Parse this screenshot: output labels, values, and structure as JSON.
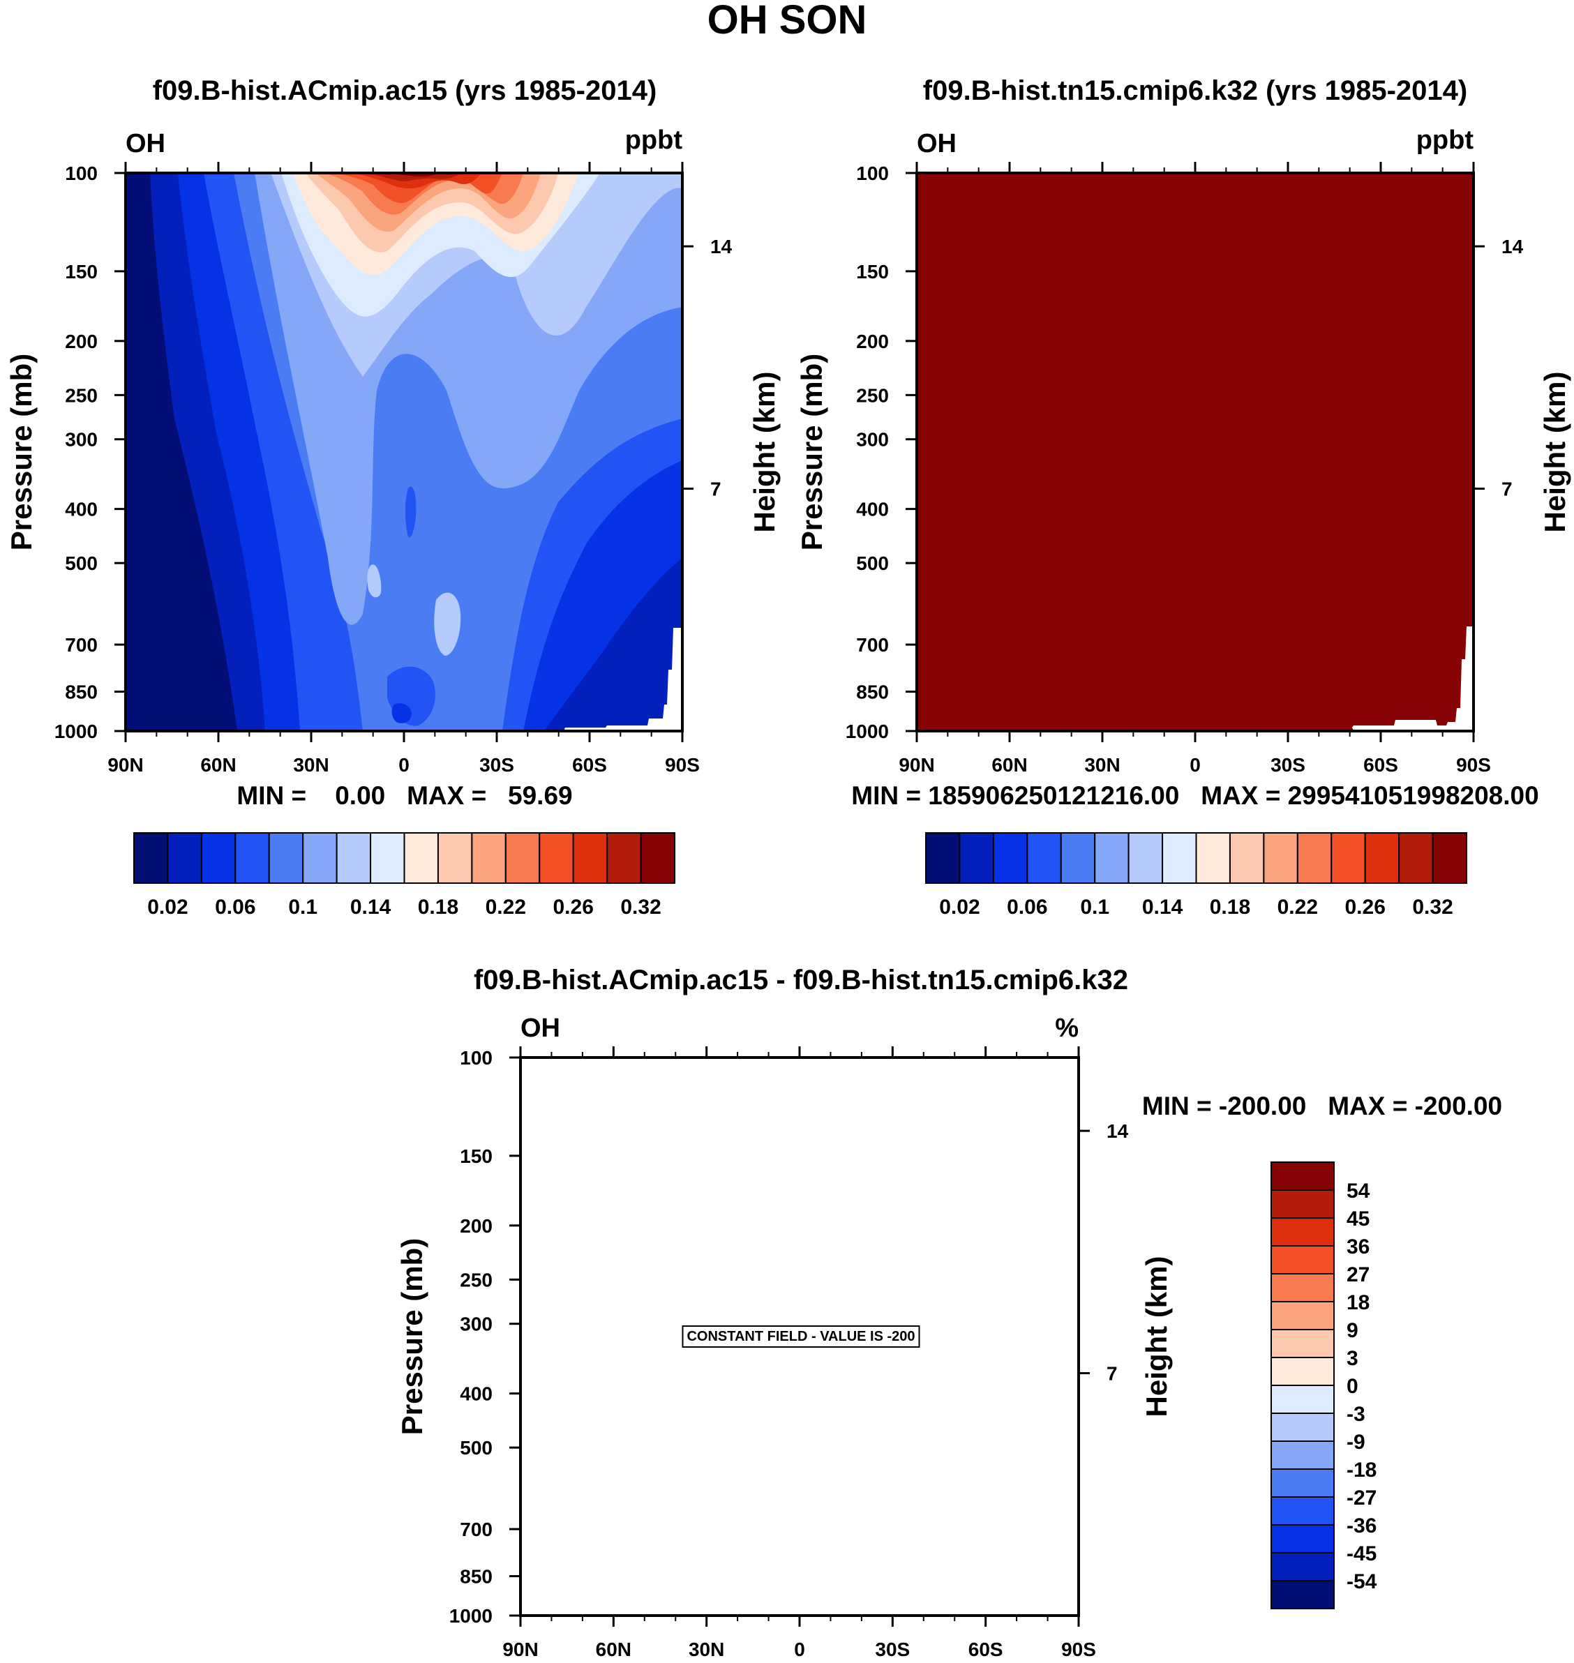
{
  "figure_title": "OH SON",
  "colors": {
    "bar_colors": [
      "#020D76",
      "#0420BC",
      "#0632E6",
      "#2253F5",
      "#4C7CF4",
      "#85A7F7",
      "#B4CBFB",
      "#DCEBFD",
      "#FEE9DA",
      "#FCC9AF",
      "#FBA57F",
      "#F87A4F",
      "#F25026",
      "#DE300E",
      "#B11D08",
      "#870203"
    ]
  },
  "panels": [
    {
      "title": "f09.B-hist.ACmip.ac15 (yrs 1985-2014)",
      "left_label": "OH",
      "right_label": "ppbt",
      "stats": "MIN =    0.00   MAX =   59.69",
      "fill": "contours",
      "colorbar_labels": [
        "0.02",
        "0.06",
        "0.1",
        "0.14",
        "0.18",
        "0.22",
        "0.26",
        "0.32"
      ]
    },
    {
      "title": "f09.B-hist.tn15.cmip6.k32 (yrs 1985-2014)",
      "left_label": "OH",
      "right_label": "ppbt",
      "stats": "MIN = 18590625012121​6.00   MAX = 29954105199820​8.00",
      "fill": "solid",
      "colorbar_labels": [
        "0.02",
        "0.06",
        "0.1",
        "0.14",
        "0.18",
        "0.22",
        "0.26",
        "0.32"
      ]
    },
    {
      "title": "f09.B-hist.ACmip.ac15 - f09.B-hist.tn15.cmip6.k32",
      "left_label": "OH",
      "right_label": "%",
      "stats": "MIN = -200.00   MAX = -200.00",
      "fill": "none",
      "message": "CONSTANT FIELD - VALUE IS -200",
      "colorbar_labels": [
        "54",
        "45",
        "36",
        "27",
        "18",
        "9",
        "3",
        "0",
        "-3",
        "-9",
        "-18",
        "-27",
        "-36",
        "-45",
        "-54"
      ]
    }
  ],
  "chart_data": [
    {
      "type": "heatmap",
      "title": "f09.B-hist.ACmip.ac15 (yrs 1985-2014)",
      "variable": "OH",
      "units": "ppbt",
      "xlabel": "",
      "ylabel": "Pressure (mb)",
      "y2label": "Height (km)",
      "x_ticks": [
        "90N",
        "60N",
        "30N",
        "0",
        "30S",
        "60S",
        "90S"
      ],
      "y_ticks": [
        100,
        150,
        200,
        250,
        300,
        400,
        500,
        700,
        850,
        1000
      ],
      "y2_ticks": [
        14,
        7
      ],
      "ylim": [
        1000,
        100
      ],
      "contour_levels": [
        0.02,
        0.04,
        0.06,
        0.08,
        0.1,
        0.12,
        0.14,
        0.16,
        0.18,
        0.2,
        0.22,
        0.24,
        0.26,
        0.28,
        0.32
      ],
      "min": 0.0,
      "max": 59.69
    },
    {
      "type": "heatmap",
      "title": "f09.B-hist.tn15.cmip6.k32 (yrs 1985-2014)",
      "variable": "OH",
      "units": "ppbt",
      "xlabel": "",
      "ylabel": "Pressure (mb)",
      "y2label": "Height (km)",
      "x_ticks": [
        "90N",
        "60N",
        "30N",
        "0",
        "30S",
        "60S",
        "90S"
      ],
      "y_ticks": [
        100,
        150,
        200,
        250,
        300,
        400,
        500,
        700,
        850,
        1000
      ],
      "y2_ticks": [
        14,
        7
      ],
      "ylim": [
        1000,
        100
      ],
      "contour_levels": [
        0.02,
        0.04,
        0.06,
        0.08,
        0.1,
        0.12,
        0.14,
        0.16,
        0.18,
        0.2,
        0.22,
        0.24,
        0.26,
        0.28,
        0.32
      ],
      "min": 185906250121216.0,
      "max": 299541051998208.0
    },
    {
      "type": "heatmap",
      "title": "f09.B-hist.ACmip.ac15 - f09.B-hist.tn15.cmip6.k32",
      "variable": "OH",
      "units": "%",
      "xlabel": "",
      "ylabel": "Pressure (mb)",
      "y2label": "Height (km)",
      "x_ticks": [
        "90N",
        "60N",
        "30N",
        "0",
        "30S",
        "60S",
        "90S"
      ],
      "y_ticks": [
        100,
        150,
        200,
        250,
        300,
        400,
        500,
        700,
        850,
        1000
      ],
      "y2_ticks": [
        14,
        7
      ],
      "ylim": [
        1000,
        100
      ],
      "contour_levels": [
        -54,
        -45,
        -36,
        -27,
        -18,
        -9,
        -3,
        0,
        3,
        9,
        18,
        27,
        36,
        45,
        54
      ],
      "min": -200.0,
      "max": -200.0,
      "annotation": "CONSTANT FIELD - VALUE IS -200"
    }
  ]
}
